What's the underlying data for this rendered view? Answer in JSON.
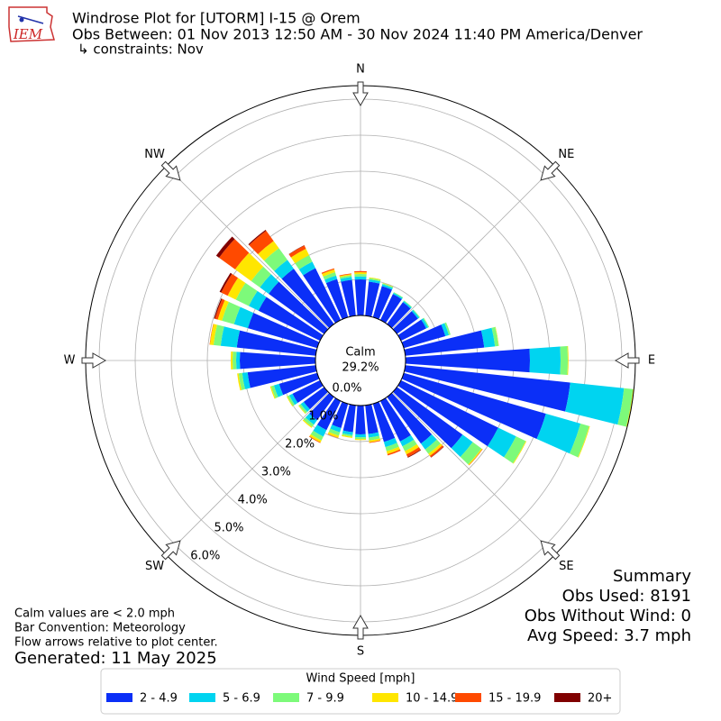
{
  "chart_data": {
    "type": "windrose",
    "logo_text": "IEM",
    "title": "Windrose Plot for [UTORM] I-15 @ Orem",
    "subtitle": [
      "Obs Between: 01 Nov 2013 12:50 AM - 30 Nov 2024 11:40 PM America/Denver",
      "↳ constraints: Nov"
    ],
    "direction_labels": [
      "N",
      "NE",
      "E",
      "SE",
      "S",
      "SW",
      "W",
      "NW"
    ],
    "calm": {
      "name": "Calm",
      "values": [
        29.2
      ],
      "value_labels": [
        "29.2%"
      ]
    },
    "x": [
      0,
      10,
      20,
      30,
      40,
      50,
      60,
      70,
      80,
      90,
      100,
      110,
      120,
      130,
      140,
      150,
      160,
      170,
      180,
      190,
      200,
      210,
      220,
      230,
      240,
      250,
      260,
      270,
      280,
      290,
      300,
      310,
      320,
      330,
      340,
      350
    ],
    "xlim": [
      0,
      360
    ],
    "ylim": [
      0,
      6.375
    ],
    "yticks": [
      {
        "value": 0,
        "label": "0.0%"
      },
      {
        "value": 1,
        "label": "1.0%"
      },
      {
        "value": 2,
        "label": "2.0%"
      },
      {
        "value": 3,
        "label": "3.0%"
      },
      {
        "value": 4,
        "label": "4.0%"
      },
      {
        "value": 5,
        "label": "5.0%"
      },
      {
        "value": 6,
        "label": "6.0%"
      }
    ],
    "grid": true,
    "legend_title": "Wind Speed [mph]",
    "legend": "bottom",
    "series": [
      {
        "name": "2 - 4.9",
        "color": "#0b2ff7",
        "values": [
          1.0,
          0.95,
          0.9,
          0.8,
          0.75,
          0.72,
          0.78,
          1.2,
          2.2,
          3.45,
          4.6,
          4.1,
          3.0,
          2.25,
          1.6,
          1.25,
          1.1,
          0.8,
          0.8,
          0.75,
          0.7,
          0.9,
          0.8,
          0.7,
          0.85,
          1.1,
          1.9,
          2.1,
          2.2,
          2.0,
          1.9,
          1.9,
          1.9,
          1.6,
          1.1,
          1.0
        ]
      },
      {
        "name": "5 - 6.9",
        "color": "#00d4f0",
        "values": [
          0.08,
          0.06,
          0.05,
          0.04,
          0.04,
          0.05,
          0.06,
          0.1,
          0.3,
          0.85,
          1.5,
          1.0,
          0.55,
          0.35,
          0.2,
          0.15,
          0.15,
          0.1,
          0.08,
          0.08,
          0.12,
          0.2,
          0.15,
          0.1,
          0.1,
          0.15,
          0.15,
          0.1,
          0.45,
          0.4,
          0.3,
          0.3,
          0.3,
          0.2,
          0.1,
          0.08
        ]
      },
      {
        "name": "7 - 9.9",
        "color": "#7dfa7a",
        "values": [
          0.07,
          0.04,
          0.03,
          0.02,
          0.02,
          0.02,
          0.03,
          0.05,
          0.1,
          0.2,
          0.25,
          0.25,
          0.3,
          0.3,
          0.15,
          0.15,
          0.12,
          0.08,
          0.05,
          0.05,
          0.1,
          0.12,
          0.08,
          0.06,
          0.06,
          0.08,
          0.1,
          0.1,
          0.2,
          0.35,
          0.4,
          0.3,
          0.4,
          0.2,
          0.1,
          0.05
        ]
      },
      {
        "name": "10 - 14.9",
        "color": "#ffe600",
        "values": [
          0.05,
          0.02,
          0.01,
          0,
          0,
          0,
          0,
          0,
          0.01,
          0.02,
          0.02,
          0.02,
          0.02,
          0.03,
          0.07,
          0.1,
          0.08,
          0.05,
          0.03,
          0.03,
          0.06,
          0.06,
          0.03,
          0.02,
          0.02,
          0.03,
          0.04,
          0.05,
          0.1,
          0.12,
          0.25,
          0.55,
          0.25,
          0.2,
          0.08,
          0.03
        ]
      },
      {
        "name": "15 - 19.9",
        "color": "#ff4a00",
        "values": [
          0.03,
          0,
          0,
          0,
          0,
          0,
          0,
          0,
          0,
          0,
          0,
          0,
          0,
          0.01,
          0.05,
          0.08,
          0.04,
          0.02,
          0,
          0,
          0.01,
          0.02,
          0,
          0,
          0,
          0,
          0,
          0,
          0.01,
          0.08,
          0.2,
          0.55,
          0.35,
          0.1,
          0.03,
          0.02
        ]
      },
      {
        "name": "20+",
        "color": "#800000",
        "values": [
          0,
          0,
          0,
          0,
          0,
          0,
          0,
          0,
          0,
          0,
          0,
          0,
          0,
          0,
          0.01,
          0.02,
          0,
          0,
          0,
          0,
          0,
          0,
          0,
          0,
          0,
          0,
          0,
          0,
          0,
          0.03,
          0.05,
          0.1,
          0.03,
          0.01,
          0,
          0
        ]
      }
    ],
    "footnotes": [
      "Calm values are < 2.0 mph",
      "Bar Convention: Meteorology",
      "Flow arrows relative to plot center."
    ],
    "generated": "Generated: 11 May 2025",
    "summary": [
      "Summary",
      "Obs Used: 8191",
      "Obs Without Wind: 0",
      "Avg Speed: 3.7 mph"
    ]
  }
}
